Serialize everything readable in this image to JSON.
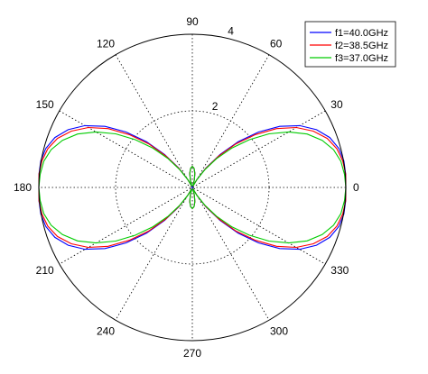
{
  "chart_data": {
    "type": "line",
    "subtype": "polar",
    "title": "",
    "angle_unit": "degrees",
    "angle_ticks": [
      0,
      30,
      60,
      90,
      120,
      150,
      180,
      210,
      240,
      270,
      300,
      330
    ],
    "angle_tick_labels": [
      "0",
      "30",
      "60",
      "90",
      "120",
      "150",
      "180",
      "210",
      "240",
      "270",
      "300",
      "330"
    ],
    "rlim": [
      0,
      4
    ],
    "r_ticks": [
      2,
      4
    ],
    "r_tick_labels": [
      "2",
      "4"
    ],
    "grid": true,
    "legend_position": "top-right",
    "series": [
      {
        "name": "f1=40.0GHz",
        "color": "#0000ff",
        "angles": [
          0,
          5,
          10,
          15,
          20,
          25,
          30,
          35,
          40,
          45,
          50,
          55,
          60,
          65,
          70,
          75,
          80,
          85,
          90
        ],
        "values": [
          4.0,
          4.01,
          4.01,
          3.95,
          3.81,
          3.57,
          3.23,
          2.78,
          2.25,
          1.69,
          1.12,
          0.62,
          0.24,
          0.04,
          0.05,
          0.2,
          0.38,
          0.5,
          0.55
        ]
      },
      {
        "name": "f2=38.5GHz",
        "color": "#ff0000",
        "angles": [
          0,
          5,
          10,
          15,
          20,
          25,
          30,
          35,
          40,
          45,
          50,
          55,
          60,
          65,
          70,
          75,
          80,
          85,
          90
        ],
        "values": [
          4.0,
          4.01,
          3.98,
          3.9,
          3.74,
          3.48,
          3.13,
          2.68,
          2.15,
          1.61,
          1.07,
          0.6,
          0.24,
          0.05,
          0.05,
          0.2,
          0.38,
          0.5,
          0.55
        ]
      },
      {
        "name": "f3=37.0GHz",
        "color": "#00cc00",
        "angles": [
          0,
          5,
          10,
          15,
          20,
          25,
          30,
          35,
          40,
          45,
          50,
          55,
          60,
          65,
          70,
          75,
          80,
          85,
          90
        ],
        "values": [
          4.0,
          3.98,
          3.93,
          3.81,
          3.6,
          3.3,
          2.9,
          2.44,
          1.94,
          1.45,
          0.98,
          0.56,
          0.23,
          0.05,
          0.05,
          0.2,
          0.38,
          0.5,
          0.55
        ]
      }
    ]
  }
}
